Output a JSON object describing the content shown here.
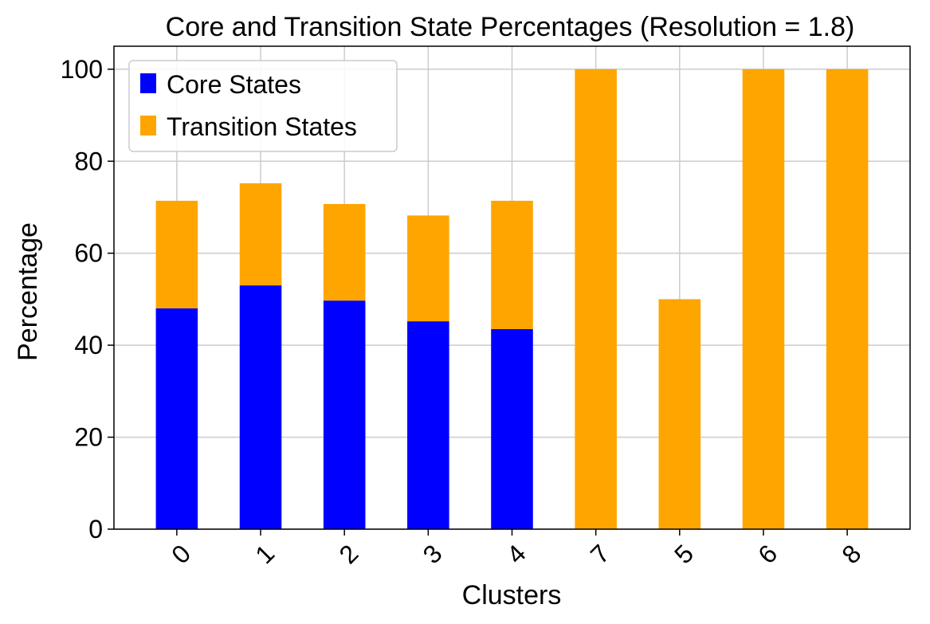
{
  "chart_data": {
    "type": "bar",
    "stacked": true,
    "title": "Core and Transition State Percentages (Resolution = 1.8)",
    "xlabel": "Clusters",
    "ylabel": "Percentage",
    "ylim": [
      0,
      105
    ],
    "yticks": [
      "0",
      "20",
      "40",
      "60",
      "80",
      "100"
    ],
    "grid": true,
    "legend_position": "top-left",
    "categories": [
      "0",
      "1",
      "2",
      "3",
      "4",
      "7",
      "5",
      "6",
      "8"
    ],
    "series": [
      {
        "name": "Core States",
        "color": "#0000ff",
        "values": [
          48.0,
          53.0,
          49.7,
          45.2,
          43.5,
          0,
          0,
          0,
          0
        ]
      },
      {
        "name": "Transition States",
        "color": "#ffa500",
        "values": [
          23.4,
          22.2,
          21.0,
          23.0,
          27.9,
          100,
          50,
          100,
          100
        ]
      }
    ]
  }
}
